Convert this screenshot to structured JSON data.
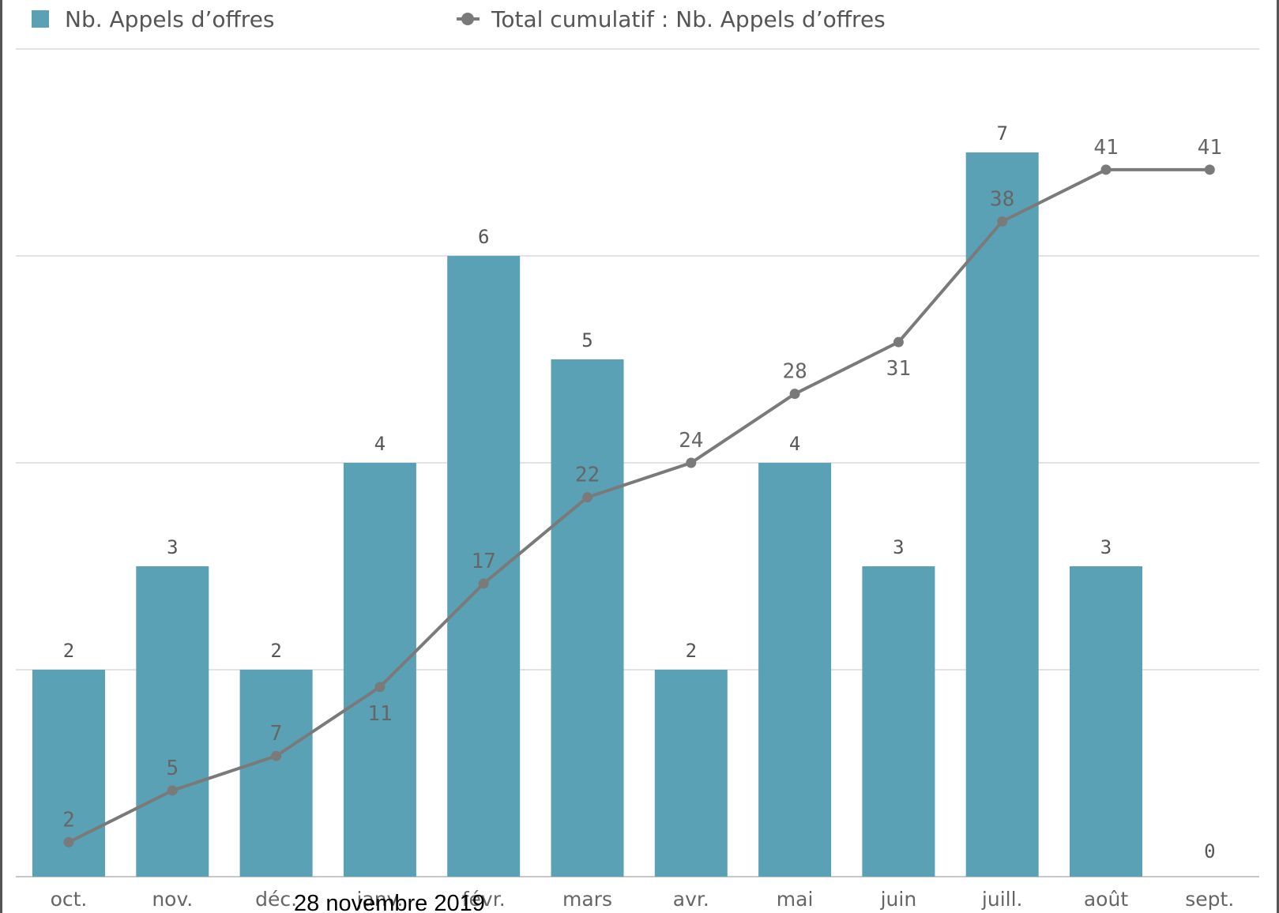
{
  "chart_data": {
    "type": "bar",
    "categories": [
      "oct.",
      "nov.",
      "déc.",
      "janv.",
      "févr.",
      "mars",
      "avr.",
      "mai",
      "juin",
      "juill.",
      "août",
      "sept."
    ],
    "series": [
      {
        "name": "Nb. Appels d’offres",
        "type": "bar",
        "values": [
          2,
          3,
          2,
          4,
          6,
          5,
          2,
          4,
          3,
          7,
          3,
          0
        ]
      },
      {
        "name": "Total cumulatif : Nb. Appels d’offres",
        "type": "line",
        "values": [
          2,
          5,
          7,
          11,
          17,
          22,
          24,
          28,
          31,
          38,
          41,
          41
        ]
      }
    ],
    "bar_labels": [
      "2",
      "3",
      "2",
      "4",
      "6",
      "5",
      "2",
      "4",
      "3",
      "7",
      "3",
      "0"
    ],
    "line_labels": [
      "2",
      "5",
      "7",
      "11",
      "17",
      "22",
      "24",
      "28",
      "31",
      "38",
      "41",
      "41"
    ],
    "bar_axis_range": [
      0,
      8
    ],
    "line_axis_range": [
      0,
      48
    ],
    "grid": true,
    "legend_position": "top",
    "colors": {
      "bar": "#5aa1b6",
      "line": "#7a7a7a",
      "grid": "#d9d9d9"
    }
  },
  "footer": {
    "date": "28 novembre 2019"
  }
}
